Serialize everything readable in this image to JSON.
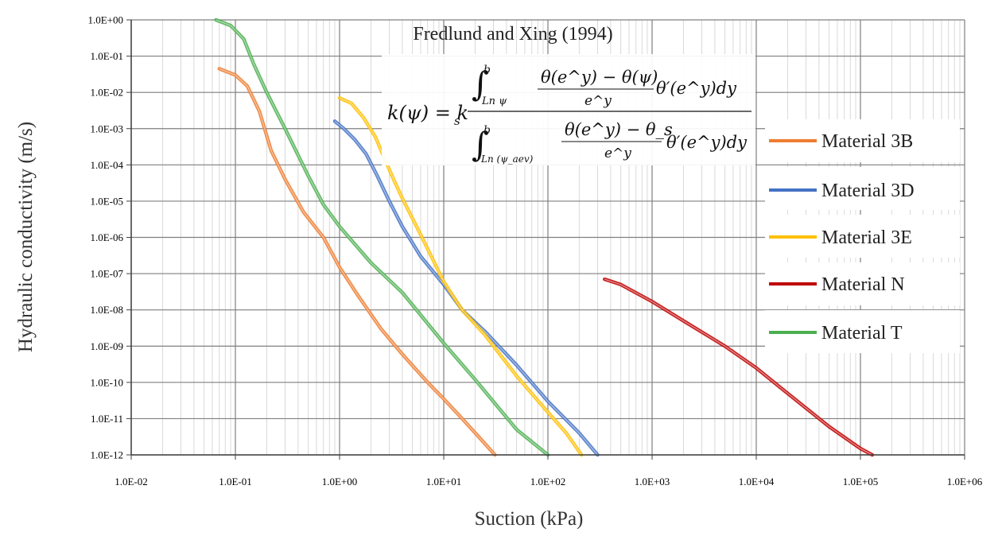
{
  "chart_data": {
    "type": "line",
    "title": "Fredlund and Xing (1994)",
    "xlabel": "Suction (kPa)",
    "ylabel": "Hydraulic conductivity (m/s)",
    "x_scale": "log",
    "y_scale": "log",
    "xlim": [
      0.01,
      1000000
    ],
    "ylim": [
      1e-12,
      1
    ],
    "grid": true,
    "legend_position": "right",
    "x_tick_labels": [
      "1.0E-02",
      "1.0E-01",
      "1.0E+00",
      "1.0E+01",
      "1.0E+02",
      "1.0E+03",
      "1.0E+04",
      "1.0E+05",
      "1.0E+06"
    ],
    "y_tick_labels": [
      "1.0E+00",
      "1.0E-01",
      "1.0E-02",
      "1.0E-03",
      "1.0E-04",
      "1.0E-05",
      "1.0E-06",
      "1.0E-07",
      "1.0E-08",
      "1.0E-09",
      "1.0E-10",
      "1.0E-11",
      "1.0E-12"
    ],
    "equation": {
      "lhs": "k(ψ) = k",
      "ks_sub": "s",
      "num_lower": "Ln ψ",
      "num_upper": "b",
      "num_integrand": "θ(e^y) − θ(ψ)",
      "num_denominator": "e^y",
      "num_tail": "θ′(e^y)dy",
      "den_lower": "Ln (ψ_aev)",
      "den_upper": "b",
      "den_integrand": "θ(e^y) − θ_s",
      "den_denominator": "e^y",
      "den_tail": "θ′(e^y)dy"
    },
    "series": [
      {
        "name": "Material 3B",
        "color": "#ED7D31",
        "x": [
          0.07,
          0.1,
          0.13,
          0.17,
          0.22,
          0.3,
          0.45,
          0.7,
          1.0,
          1.5,
          2.5,
          4.0,
          7.0,
          10.0,
          15.0,
          22.0,
          31.0
        ],
        "y": [
          0.045,
          0.03,
          0.015,
          0.003,
          0.00025,
          4e-05,
          5e-06,
          1e-06,
          1.5e-07,
          2.5e-08,
          3e-09,
          6e-10,
          1e-10,
          3.5e-11,
          1e-11,
          3e-12,
          1e-12
        ]
      },
      {
        "name": "Material 3D",
        "color": "#4472C4",
        "x": [
          0.9,
          1.1,
          1.4,
          1.8,
          2.3,
          3.0,
          4.0,
          6.0,
          10.0,
          15.0,
          25.0,
          50.0,
          100.0,
          200.0,
          300.0
        ],
        "y": [
          0.0016,
          0.001,
          0.0005,
          0.0002,
          5e-05,
          1e-05,
          2e-06,
          3e-07,
          5e-08,
          1e-08,
          2.5e-09,
          3e-10,
          3e-11,
          4e-12,
          1e-12
        ]
      },
      {
        "name": "Material 3E",
        "color": "#FFC000",
        "x": [
          1.0,
          1.3,
          1.7,
          2.2,
          2.7,
          3.3,
          4.0,
          6.0,
          10.0,
          15.0,
          25.0,
          50.0,
          100.0,
          150.0,
          210.0
        ],
        "y": [
          0.007,
          0.005,
          0.002,
          0.0006,
          0.00015,
          4e-05,
          1.2e-05,
          1.2e-06,
          6e-08,
          1e-08,
          2e-09,
          1.5e-10,
          1.5e-11,
          4e-12,
          1e-12
        ]
      },
      {
        "name": "Material N",
        "color": "#C00000",
        "x": [
          350,
          500,
          1000,
          2000,
          5000,
          10000,
          20000,
          50000,
          100000,
          130000
        ],
        "y": [
          7e-08,
          5e-08,
          1.7e-08,
          5e-09,
          1e-09,
          2.5e-10,
          5e-11,
          6e-12,
          1.5e-12,
          1e-12
        ]
      },
      {
        "name": "Material T",
        "color": "#4CAF50",
        "x": [
          0.065,
          0.09,
          0.12,
          0.15,
          0.2,
          0.3,
          0.5,
          0.7,
          1.0,
          2.0,
          4.0,
          10.0,
          20.0,
          50.0,
          100.0
        ],
        "y": [
          1.0,
          0.7,
          0.3,
          0.06,
          0.01,
          0.001,
          5e-05,
          8e-06,
          2e-06,
          2e-07,
          3e-08,
          1.2e-09,
          1.2e-10,
          5e-12,
          1e-12
        ]
      }
    ]
  }
}
